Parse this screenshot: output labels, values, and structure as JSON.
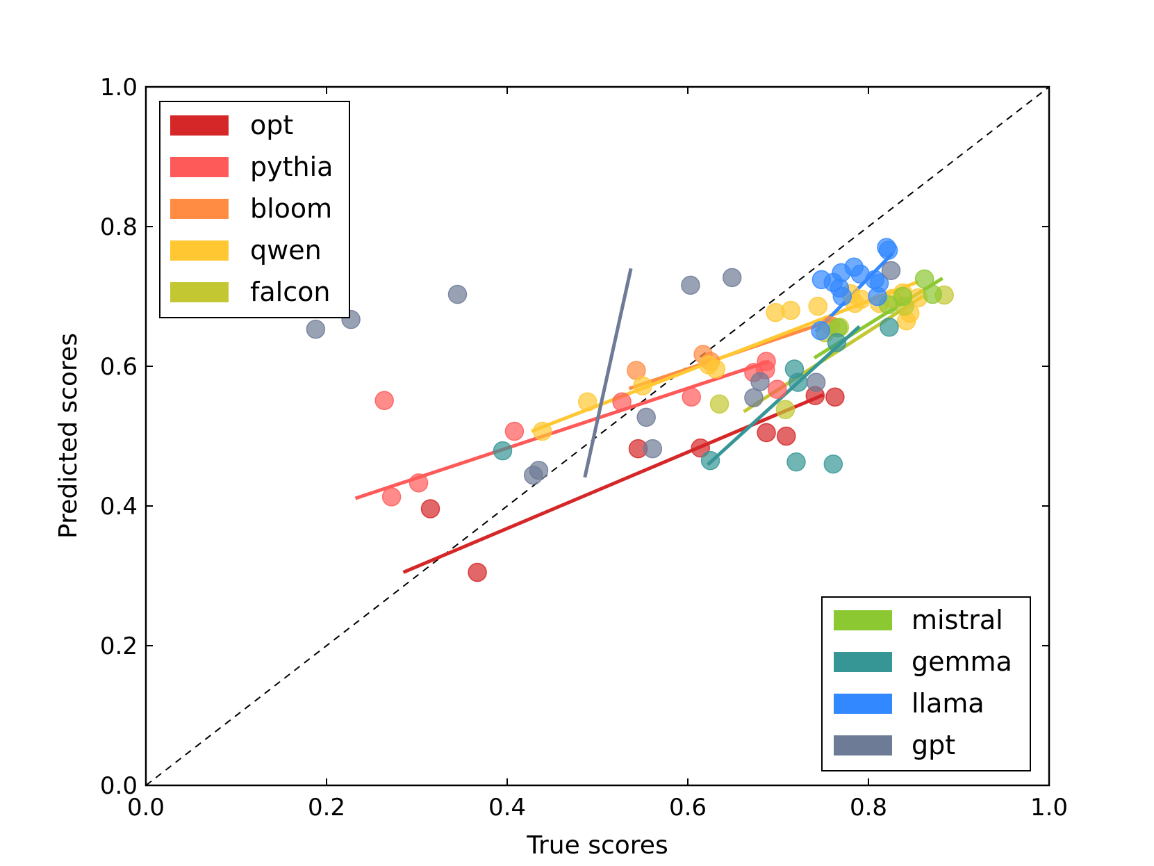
{
  "chart_data": {
    "type": "scatter",
    "title": "",
    "xlabel": "True scores",
    "ylabel": "Predicted scores",
    "xlim": [
      0.0,
      1.0
    ],
    "ylim": [
      0.0,
      1.0
    ],
    "xticks": [
      "0.0",
      "0.2",
      "0.4",
      "0.6",
      "0.8",
      "1.0"
    ],
    "yticks": [
      "0.0",
      "0.2",
      "0.4",
      "0.6",
      "0.8",
      "1.0"
    ],
    "grid": false,
    "reference_line": "y = x (dashed)",
    "legends": [
      {
        "placement": "top-left",
        "entries": [
          "opt",
          "pythia",
          "bloom",
          "qwen",
          "falcon"
        ]
      },
      {
        "placement": "bottom-right",
        "entries": [
          "mistral",
          "gemma",
          "llama",
          "gpt"
        ]
      }
    ],
    "series": [
      {
        "name": "opt",
        "color": "#d62728",
        "points": [
          [
            0.315,
            0.396
          ],
          [
            0.367,
            0.305
          ],
          [
            0.545,
            0.482
          ],
          [
            0.614,
            0.483
          ],
          [
            0.687,
            0.505
          ],
          [
            0.709,
            0.5
          ],
          [
            0.741,
            0.558
          ],
          [
            0.763,
            0.556
          ]
        ],
        "fit": [
          [
            0.285,
            0.305
          ],
          [
            0.75,
            0.559
          ]
        ]
      },
      {
        "name": "pythia",
        "color": "#ff5a5a",
        "points": [
          [
            0.264,
            0.551
          ],
          [
            0.272,
            0.413
          ],
          [
            0.302,
            0.433
          ],
          [
            0.408,
            0.507
          ],
          [
            0.527,
            0.549
          ],
          [
            0.604,
            0.556
          ],
          [
            0.673,
            0.591
          ],
          [
            0.687,
            0.607
          ],
          [
            0.686,
            0.595
          ],
          [
            0.699,
            0.567
          ]
        ],
        "fit": [
          [
            0.232,
            0.411
          ],
          [
            0.69,
            0.607
          ]
        ]
      },
      {
        "name": "bloom",
        "color": "#ff8c42",
        "points": [
          [
            0.543,
            0.594
          ],
          [
            0.617,
            0.617
          ],
          [
            0.625,
            0.607
          ],
          [
            0.758,
            0.658
          ]
        ],
        "fit": [
          [
            0.535,
            0.568
          ],
          [
            0.765,
            0.668
          ]
        ]
      },
      {
        "name": "qwen",
        "color": "#ffc832",
        "points": [
          [
            0.439,
            0.507
          ],
          [
            0.489,
            0.549
          ],
          [
            0.55,
            0.572
          ],
          [
            0.623,
            0.602
          ],
          [
            0.631,
            0.596
          ],
          [
            0.697,
            0.677
          ],
          [
            0.714,
            0.68
          ],
          [
            0.744,
            0.686
          ],
          [
            0.78,
            0.704
          ],
          [
            0.785,
            0.69
          ],
          [
            0.792,
            0.696
          ],
          [
            0.812,
            0.69
          ],
          [
            0.826,
            0.697
          ],
          [
            0.838,
            0.705
          ],
          [
            0.842,
            0.665
          ],
          [
            0.846,
            0.676
          ],
          [
            0.855,
            0.698
          ]
        ],
        "fit": [
          [
            0.427,
            0.507
          ],
          [
            0.855,
            0.721
          ]
        ]
      },
      {
        "name": "falcon",
        "color": "#c3c832",
        "points": [
          [
            0.635,
            0.546
          ],
          [
            0.708,
            0.538
          ],
          [
            0.752,
            0.648
          ],
          [
            0.768,
            0.656
          ],
          [
            0.84,
            0.686
          ],
          [
            0.884,
            0.702
          ]
        ],
        "fit": [
          [
            0.662,
            0.535
          ],
          [
            0.86,
            0.7
          ]
        ]
      },
      {
        "name": "mistral",
        "color": "#8cc832",
        "points": [
          [
            0.766,
            0.655
          ],
          [
            0.822,
            0.688
          ],
          [
            0.838,
            0.7
          ],
          [
            0.862,
            0.725
          ],
          [
            0.871,
            0.703
          ]
        ],
        "fit": [
          [
            0.74,
            0.612
          ],
          [
            0.882,
            0.726
          ]
        ]
      },
      {
        "name": "gemma",
        "color": "#369696",
        "points": [
          [
            0.395,
            0.479
          ],
          [
            0.625,
            0.465
          ],
          [
            0.718,
            0.596
          ],
          [
            0.72,
            0.463
          ],
          [
            0.722,
            0.577
          ],
          [
            0.761,
            0.46
          ],
          [
            0.765,
            0.634
          ],
          [
            0.823,
            0.656
          ]
        ],
        "fit": [
          [
            0.622,
            0.459
          ],
          [
            0.79,
            0.657
          ]
        ]
      },
      {
        "name": "llama",
        "color": "#3288ff",
        "points": [
          [
            0.747,
            0.651
          ],
          [
            0.748,
            0.724
          ],
          [
            0.761,
            0.72
          ],
          [
            0.768,
            0.712
          ],
          [
            0.77,
            0.734
          ],
          [
            0.771,
            0.7
          ],
          [
            0.784,
            0.742
          ],
          [
            0.791,
            0.732
          ],
          [
            0.807,
            0.724
          ],
          [
            0.81,
            0.7
          ],
          [
            0.812,
            0.719
          ],
          [
            0.82,
            0.77
          ],
          [
            0.822,
            0.766
          ]
        ],
        "fit": [
          [
            0.742,
            0.65
          ],
          [
            0.827,
            0.762
          ]
        ]
      },
      {
        "name": "gpt",
        "color": "#6e7b96",
        "points": [
          [
            0.188,
            0.653
          ],
          [
            0.227,
            0.667
          ],
          [
            0.345,
            0.703
          ],
          [
            0.429,
            0.444
          ],
          [
            0.435,
            0.451
          ],
          [
            0.554,
            0.527
          ],
          [
            0.561,
            0.482
          ],
          [
            0.603,
            0.716
          ],
          [
            0.649,
            0.727
          ],
          [
            0.673,
            0.555
          ],
          [
            0.68,
            0.578
          ],
          [
            0.742,
            0.577
          ],
          [
            0.825,
            0.737
          ]
        ],
        "fit": [
          [
            0.486,
            0.441
          ],
          [
            0.537,
            0.74
          ]
        ]
      }
    ]
  }
}
